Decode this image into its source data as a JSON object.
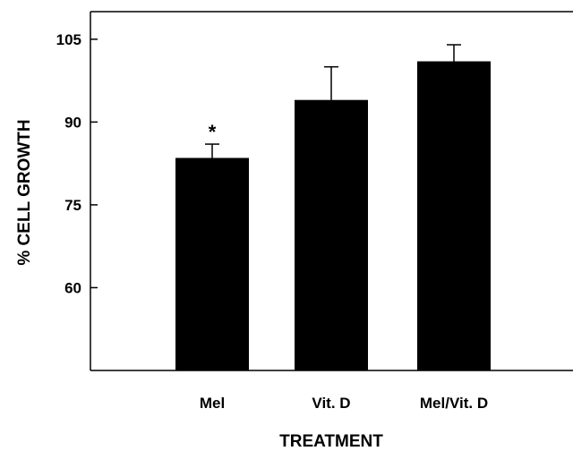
{
  "chart_data": {
    "type": "bar",
    "title": "",
    "xlabel": "TREATMENT",
    "ylabel": "% CELL GROWTH",
    "categories": [
      "Mel",
      "Vit. D",
      "Mel/Vit. D"
    ],
    "values": [
      83.5,
      94,
      101
    ],
    "errors": [
      2.5,
      6,
      3
    ],
    "annotations": [
      "*",
      "",
      ""
    ],
    "ylim": [
      45,
      110
    ],
    "yticks": [
      60,
      75,
      90,
      105
    ],
    "ytick_labels": [
      "60",
      "75",
      "90",
      "105"
    ],
    "grid": false,
    "legend": "none",
    "bar_color": "#000000"
  }
}
